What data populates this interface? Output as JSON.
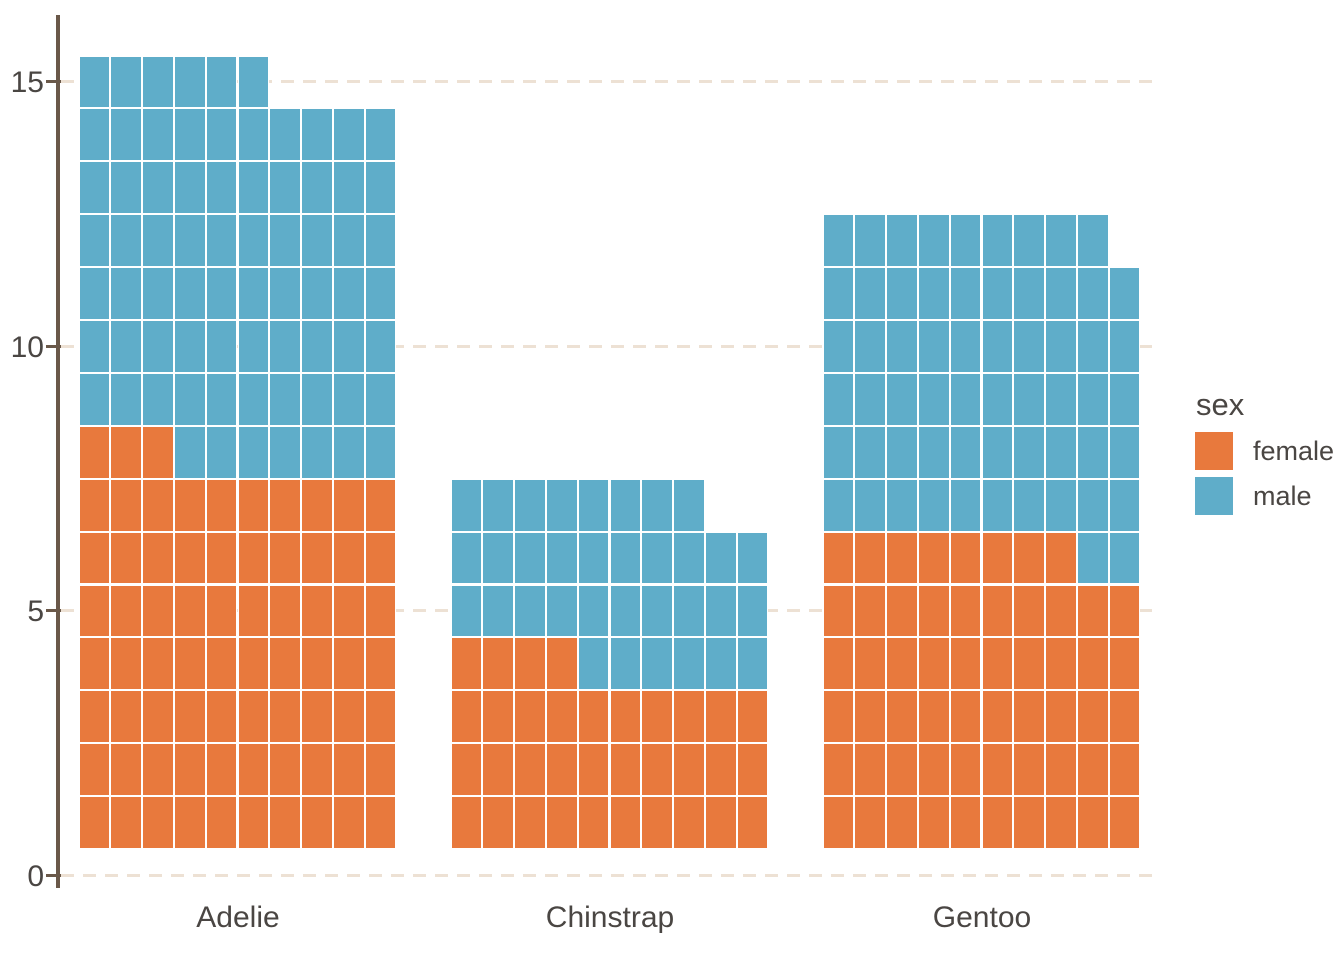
{
  "chart_data": {
    "type": "bar",
    "subtype": "waffle-stacked-bar",
    "title": "",
    "xlabel": "",
    "ylabel": "",
    "categories": [
      "Adelie",
      "Chinstrap",
      "Gentoo"
    ],
    "series": [
      {
        "name": "female",
        "color": "#E8793D",
        "values": [
          73,
          34,
          58
        ]
      },
      {
        "name": "male",
        "color": "#5FADC9",
        "values": [
          73,
          34,
          61
        ]
      }
    ],
    "totals": [
      146,
      68,
      119
    ],
    "waffle": {
      "columns_per_bar": 10,
      "units_per_cell": 1,
      "fill_order": "bottom-up, left-to-right, female then male"
    },
    "y_axis": {
      "tick_labels": [
        "0",
        "5",
        "10",
        "15"
      ],
      "tick_values": [
        0,
        5,
        10,
        15
      ],
      "range": [
        0,
        16.3
      ],
      "note": "1 y-unit = 1 waffle row of 10 cells; bars start at 0.5"
    },
    "legend": {
      "title": "sex",
      "position": "right",
      "entries": [
        {
          "label": "female",
          "color": "#E8793D"
        },
        {
          "label": "male",
          "color": "#5FADC9"
        }
      ]
    },
    "grid": {
      "style": "dashed",
      "orientation": "horizontal",
      "color": "#EDE1D4",
      "lines_at": [
        0,
        5,
        10,
        15
      ]
    },
    "axis_color": "#6A5849",
    "text_color": "#4A4643",
    "background_color": "#FFFFFF"
  }
}
